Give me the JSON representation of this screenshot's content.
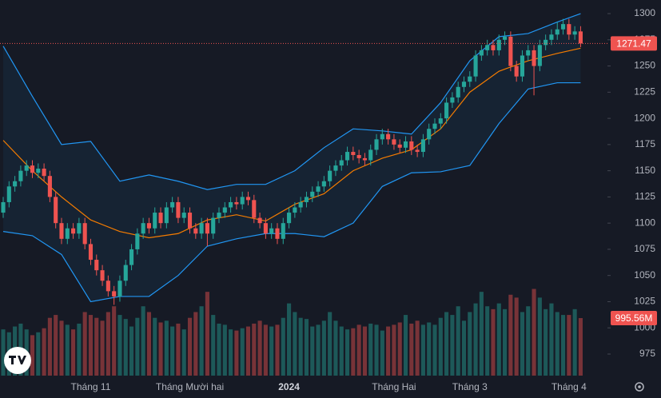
{
  "chart_data": {
    "type": "candlestick",
    "up_color": "#26a69a",
    "down_color": "#ef5350",
    "band_upper_color": "#2196f3",
    "band_lower_color": "#2196f3",
    "band_middle_color": "#f57c00",
    "ylim": [
      954.4,
      1313
    ],
    "yticks": [
      975,
      1000,
      1025,
      1050,
      1075,
      1100,
      1125,
      1150,
      1175,
      1200,
      1225,
      1250,
      1275,
      1300
    ],
    "volume_ylim": [
      0,
      6500000000
    ],
    "xticks": [
      {
        "value": 15,
        "label": "Tháng 11"
      },
      {
        "value": 32,
        "label": "Tháng Mười hai"
      },
      {
        "value": 49,
        "label": "2024"
      },
      {
        "value": 67,
        "label": "Tháng Hai"
      },
      {
        "value": 80,
        "label": "Tháng 3"
      },
      {
        "value": 97,
        "label": "Tháng 4"
      }
    ],
    "xlim": [
      -0.55,
      103.6
    ],
    "open": [
      1110,
      1120,
      1135,
      1140,
      1150,
      1155,
      1148,
      1152,
      1145,
      1125,
      1100,
      1085,
      1095,
      1090,
      1100,
      1080,
      1065,
      1055,
      1045,
      1035,
      1030,
      1045,
      1060,
      1075,
      1090,
      1100,
      1095,
      1110,
      1100,
      1115,
      1120,
      1105,
      1110,
      1095,
      1090,
      1100,
      1090,
      1105,
      1110,
      1115,
      1120,
      1118,
      1125,
      1122,
      1105,
      1100,
      1090,
      1095,
      1085,
      1100,
      1110,
      1115,
      1120,
      1125,
      1130,
      1135,
      1140,
      1150,
      1155,
      1160,
      1168,
      1165,
      1162,
      1160,
      1170,
      1180,
      1185,
      1180,
      1175,
      1172,
      1178,
      1170,
      1168,
      1180,
      1190,
      1195,
      1200,
      1215,
      1220,
      1230,
      1235,
      1240,
      1260,
      1265,
      1270,
      1265,
      1275,
      1278,
      1250,
      1240,
      1260,
      1265,
      1250,
      1270,
      1275,
      1280,
      1285,
      1290,
      1280,
      1283
    ],
    "high": [
      1125,
      1140,
      1145,
      1155,
      1160,
      1160,
      1157,
      1157,
      1150,
      1130,
      1105,
      1100,
      1100,
      1105,
      1105,
      1085,
      1070,
      1060,
      1050,
      1040,
      1050,
      1065,
      1080,
      1095,
      1105,
      1105,
      1115,
      1115,
      1120,
      1125,
      1125,
      1115,
      1115,
      1100,
      1105,
      1105,
      1110,
      1115,
      1120,
      1125,
      1125,
      1130,
      1130,
      1127,
      1110,
      1105,
      1100,
      1100,
      1105,
      1115,
      1120,
      1125,
      1130,
      1135,
      1140,
      1145,
      1155,
      1160,
      1165,
      1173,
      1173,
      1170,
      1167,
      1175,
      1185,
      1190,
      1190,
      1185,
      1180,
      1183,
      1183,
      1175,
      1185,
      1195,
      1200,
      1205,
      1220,
      1225,
      1235,
      1240,
      1245,
      1265,
      1270,
      1275,
      1275,
      1280,
      1283,
      1283,
      1255,
      1265,
      1270,
      1270,
      1275,
      1280,
      1285,
      1292,
      1295,
      1295,
      1288,
      1288
    ],
    "low": [
      1105,
      1115,
      1130,
      1135,
      1145,
      1143,
      1143,
      1140,
      1120,
      1095,
      1080,
      1080,
      1085,
      1085,
      1075,
      1060,
      1050,
      1040,
      1030,
      1022,
      1025,
      1040,
      1055,
      1070,
      1085,
      1090,
      1090,
      1095,
      1095,
      1110,
      1100,
      1100,
      1090,
      1085,
      1085,
      1078,
      1085,
      1100,
      1105,
      1110,
      1113,
      1113,
      1117,
      1100,
      1095,
      1085,
      1085,
      1080,
      1080,
      1095,
      1105,
      1110,
      1115,
      1120,
      1125,
      1130,
      1135,
      1145,
      1150,
      1155,
      1160,
      1157,
      1155,
      1155,
      1165,
      1175,
      1175,
      1170,
      1167,
      1167,
      1165,
      1163,
      1163,
      1175,
      1185,
      1190,
      1195,
      1210,
      1215,
      1225,
      1230,
      1235,
      1255,
      1260,
      1260,
      1260,
      1270,
      1245,
      1235,
      1235,
      1255,
      1222,
      1245,
      1265,
      1270,
      1275,
      1280,
      1275,
      1275,
      1268
    ],
    "close": [
      1120,
      1135,
      1140,
      1150,
      1155,
      1148,
      1152,
      1145,
      1125,
      1100,
      1085,
      1095,
      1090,
      1100,
      1080,
      1065,
      1055,
      1045,
      1035,
      1030,
      1045,
      1060,
      1075,
      1090,
      1100,
      1095,
      1110,
      1100,
      1115,
      1120,
      1105,
      1110,
      1095,
      1090,
      1100,
      1090,
      1105,
      1110,
      1115,
      1120,
      1118,
      1125,
      1122,
      1105,
      1100,
      1090,
      1095,
      1085,
      1100,
      1110,
      1115,
      1120,
      1125,
      1130,
      1135,
      1140,
      1150,
      1155,
      1160,
      1168,
      1165,
      1162,
      1160,
      1170,
      1180,
      1185,
      1180,
      1175,
      1172,
      1178,
      1170,
      1168,
      1180,
      1190,
      1195,
      1200,
      1215,
      1220,
      1230,
      1235,
      1240,
      1260,
      1265,
      1270,
      1265,
      1275,
      1278,
      1250,
      1240,
      1260,
      1265,
      1250,
      1270,
      1275,
      1280,
      1285,
      1290,
      1280,
      1283,
      1271.47
    ],
    "volume": [
      800000000.0,
      750000000.0,
      850000000.0,
      900000000.0,
      800000000.0,
      700000000.0,
      750000000.0,
      820000000.0,
      1000000000.0,
      1050000000.0,
      950000000.0,
      880000000.0,
      800000000.0,
      900000000.0,
      1100000000.0,
      1050000000.0,
      1000000000.0,
      950000000.0,
      1100000000.0,
      1200000000.0,
      1050000000.0,
      980000000.0,
      850000000.0,
      1000000000.0,
      1200000000.0,
      1100000000.0,
      1000000000.0,
      920000000.0,
      950000000.0,
      850000000.0,
      900000000.0,
      800000000.0,
      1000000000.0,
      1100000000.0,
      1200000000.0,
      1450000000.0,
      1050000000.0,
      900000000.0,
      880000000.0,
      800000000.0,
      780000000.0,
      820000000.0,
      850000000.0,
      900000000.0,
      950000000.0,
      880000000.0,
      850000000.0,
      880000000.0,
      1000000000.0,
      1250000000.0,
      1100000000.0,
      1000000000.0,
      980000000.0,
      850000000.0,
      880000000.0,
      950000000.0,
      1100000000.0,
      950000000.0,
      850000000.0,
      800000000.0,
      820000000.0,
      880000000.0,
      850000000.0,
      900000000.0,
      880000000.0,
      780000000.0,
      850000000.0,
      880000000.0,
      920000000.0,
      1050000000.0,
      900000000.0,
      950000000.0,
      880000000.0,
      920000000.0,
      880000000.0,
      1000000000.0,
      1100000000.0,
      1050000000.0,
      1200000000.0,
      950000000.0,
      1100000000.0,
      1250000000.0,
      1450000000.0,
      1200000000.0,
      1150000000.0,
      1250000000.0,
      1150000000.0,
      1400000000.0,
      1350000000.0,
      1100000000.0,
      1200000000.0,
      1500000000.0,
      1350000000.0,
      1150000000.0,
      1250000000.0,
      1100000000.0,
      1050000000.0,
      1050000000.0,
      1150000000.0,
      995560000
    ],
    "volume_label": "995.56M",
    "band_x": [
      0,
      5,
      10,
      15,
      20,
      25,
      30,
      35,
      40,
      45,
      50,
      55,
      60,
      65,
      70,
      75,
      80,
      85,
      90,
      95,
      99
    ],
    "band_upper": [
      1269,
      1221,
      1175,
      1178,
      1140,
      1146,
      1140,
      1132,
      1137,
      1137,
      1150,
      1172,
      1190,
      1188,
      1185,
      1215,
      1255,
      1278,
      1281,
      1292,
      1300
    ],
    "band_middle": [
      1179,
      1150,
      1125,
      1103,
      1092,
      1086,
      1090,
      1103,
      1108,
      1102,
      1118,
      1128,
      1150,
      1162,
      1170,
      1190,
      1225,
      1245,
      1255,
      1262,
      1267
    ],
    "band_lower": [
      1092,
      1088,
      1070,
      1025,
      1030,
      1030,
      1050,
      1078,
      1085,
      1090,
      1090,
      1087,
      1100,
      1135,
      1148,
      1149,
      1155,
      1195,
      1228,
      1234,
      1234
    ]
  }
}
